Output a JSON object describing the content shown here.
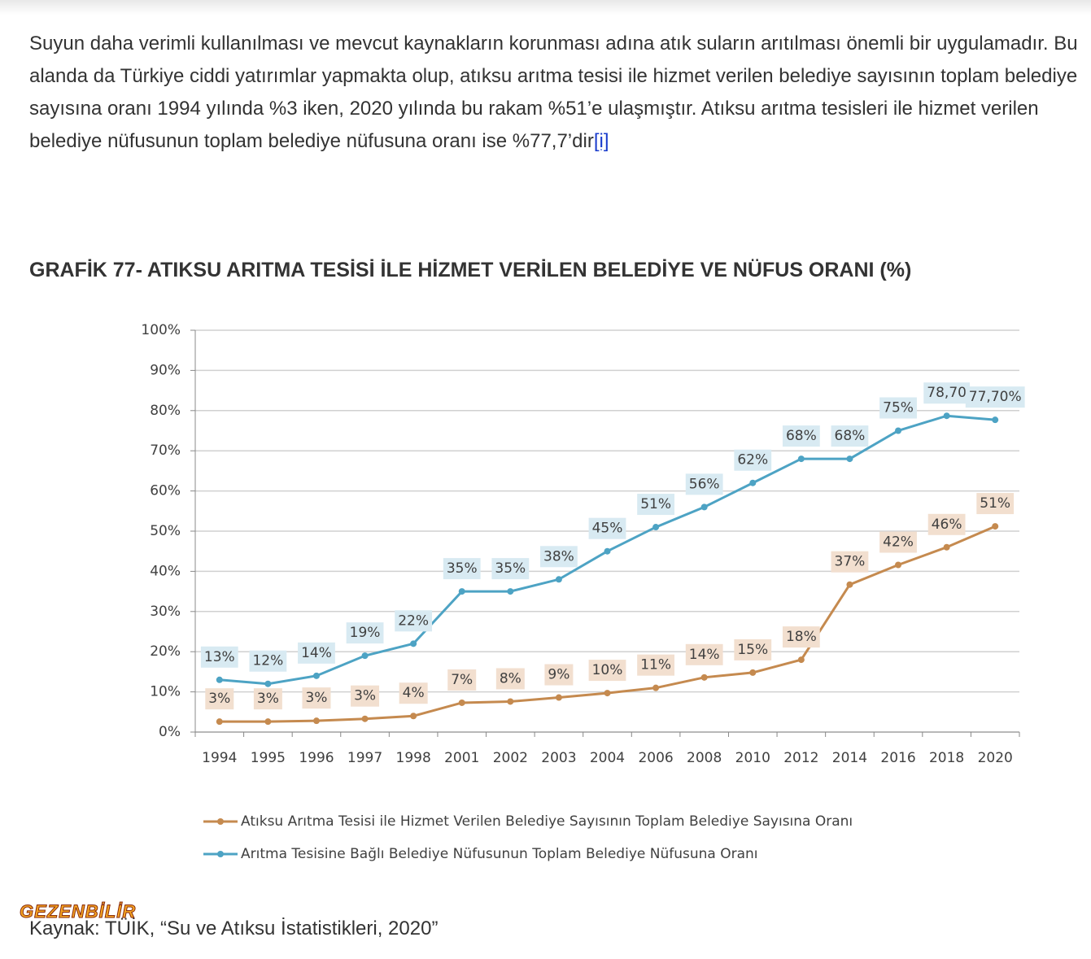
{
  "article": {
    "paragraph": "Suyun daha verimli kullanılması ve mevcut kaynakların korunması adına atık suların arıtılması önemli bir uygulamadır. Bu alanda da Türkiye ciddi yatırımlar yapmakta olup, atıksu arıtma tesisi ile hizmet verilen belediye sayısının toplam belediye sayısına oranı 1994 yılında %3 iken, 2020 yılında bu rakam %51’e ulaşmıştır. Atıksu arıtma tesisleri ile hizmet verilen belediye nüfusunun toplam belediye nüfusuna oranı ise %77,7’dir",
    "link": "[i]",
    "heading": "GRAFİK 77- ATIKSU ARITMA TESİSİ İLE HİZMET VERİLEN BELEDİYE VE NÜFUS ORANI (%)",
    "source": "Kaynak: TÜİK, “Su ve Atıksu İstatistikleri, 2020”",
    "watermark": "GEZENBİLİR"
  },
  "chart_data": {
    "type": "line",
    "categories": [
      "1994",
      "1995",
      "1996",
      "1997",
      "1998",
      "2001",
      "2002",
      "2003",
      "2004",
      "2006",
      "2008",
      "2010",
      "2012",
      "2014",
      "2016",
      "2018",
      "2020"
    ],
    "series": [
      {
        "name": "Atıksu Arıtma Tesisi ile Hizmet Verilen Belediye Sayısının Toplam Belediye Sayısına Oranı",
        "color": "#c58a4f",
        "values": [
          2.6,
          2.6,
          2.8,
          3.3,
          4,
          7.3,
          7.6,
          8.6,
          9.7,
          11,
          13.6,
          14.8,
          18,
          36.7,
          41.6,
          46,
          51.2
        ],
        "value_labels": [
          "3%",
          "3%",
          "3%",
          "3%",
          "4%",
          "7%",
          "8%",
          "9%",
          "10%",
          "11%",
          "14%",
          "15%",
          "18%",
          "37%",
          "42%",
          "46%",
          "51%"
        ],
        "label_color": "#f2dfcf"
      },
      {
        "name": "Arıtma Tesisine Bağlı Belediye Nüfusunun Toplam Belediye Nüfusuna Oranı",
        "color": "#4da3c4",
        "values": [
          13,
          12,
          14,
          19,
          22,
          35,
          35,
          38,
          45,
          51,
          56,
          62,
          68,
          68,
          75,
          78.7,
          77.7
        ],
        "value_labels": [
          "13%",
          "12%",
          "14%",
          "19%",
          "22%",
          "35%",
          "35%",
          "38%",
          "45%",
          "51%",
          "56%",
          "62%",
          "68%",
          "68%",
          "75%",
          "78,70",
          "77,70%"
        ],
        "label_color": "#d8eaf2"
      }
    ],
    "ylim": [
      0,
      100
    ],
    "yticks": [
      {
        "value": 0,
        "label": "0%"
      },
      {
        "value": 10,
        "label": "10%"
      },
      {
        "value": 20,
        "label": "20%"
      },
      {
        "value": 30,
        "label": "30%"
      },
      {
        "value": 40,
        "label": "40%"
      },
      {
        "value": 50,
        "label": "50%"
      },
      {
        "value": 60,
        "label": "60%"
      },
      {
        "value": 70,
        "label": "70%"
      },
      {
        "value": 80,
        "label": "80%"
      },
      {
        "value": 90,
        "label": "90%"
      },
      {
        "value": 100,
        "label": "100%"
      }
    ],
    "grid": true
  }
}
